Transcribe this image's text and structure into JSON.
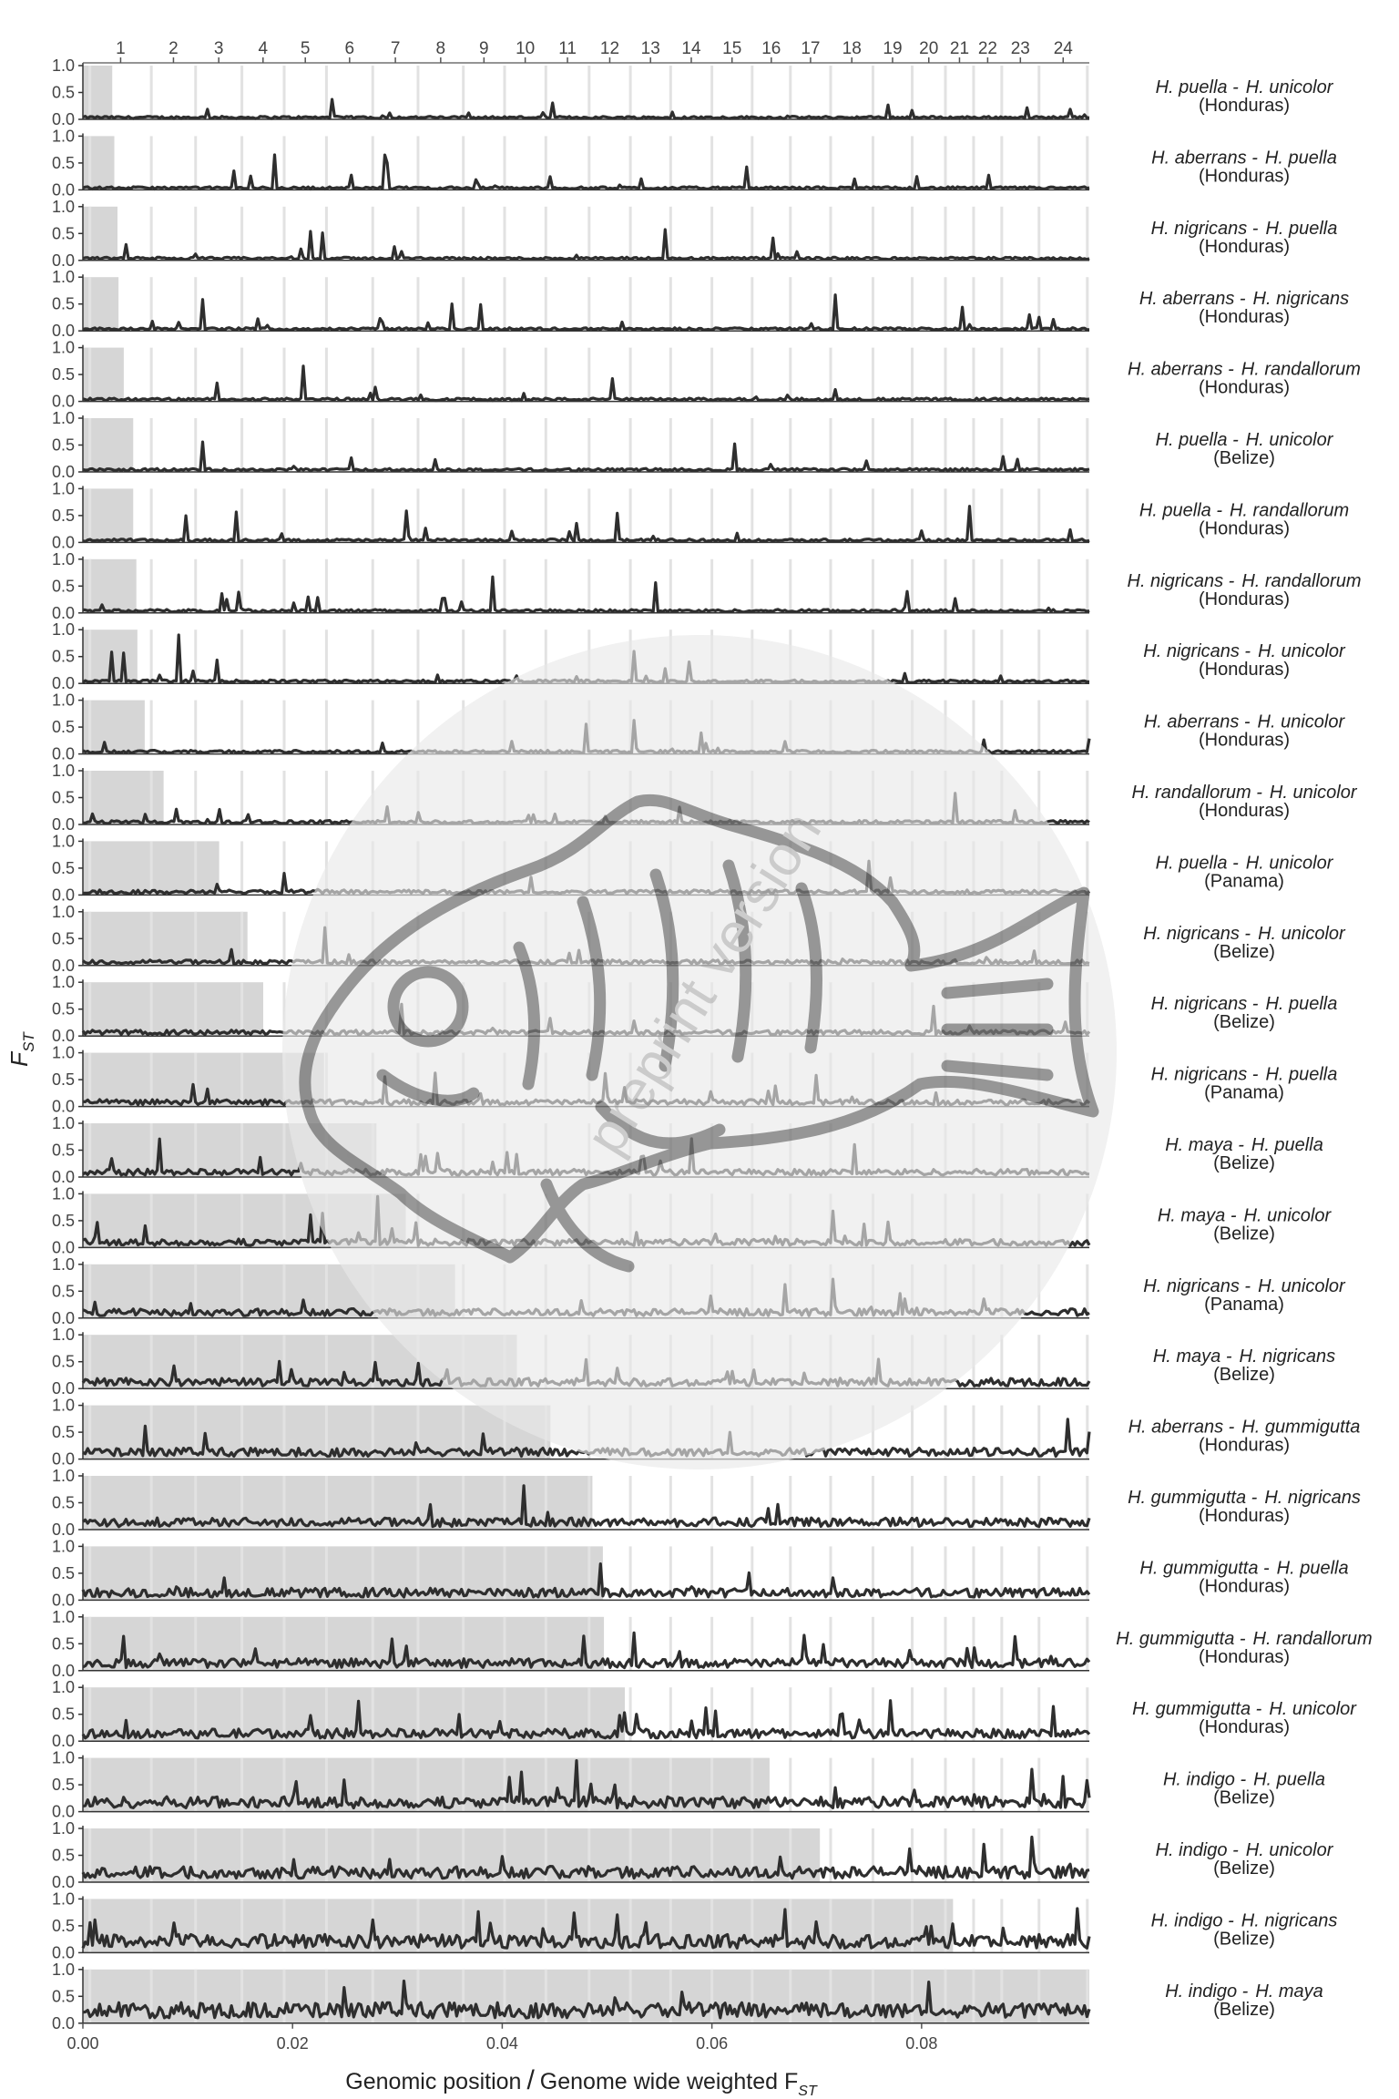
{
  "chart_data": {
    "type": "line",
    "ylabel": "F",
    "ylabel_sub": "ST",
    "xlabel": "Genomic position",
    "xlabel_sep": "/",
    "xlabel_rest": "Genome wide weighted F",
    "xlabel_sub": "ST",
    "xlim": [
      0,
      0.096
    ],
    "ylim": [
      0,
      1
    ],
    "x_ticks": [
      "0.00",
      "0.02",
      "0.04",
      "0.06",
      "0.08"
    ],
    "y_ticks": [
      "0.0",
      "0.5",
      "1.0"
    ],
    "chromosomes": [
      "1",
      "2",
      "3",
      "4",
      "5",
      "6",
      "7",
      "8",
      "9",
      "10",
      "11",
      "12",
      "13",
      "14",
      "15",
      "16",
      "17",
      "18",
      "19",
      "20",
      "21",
      "22",
      "23",
      "24"
    ],
    "watermark": "preprint version",
    "panels": [
      {
        "sp1": "H. puella -",
        "sp2": "H. unicolor",
        "loc": "(Honduras)",
        "weighted_fst": 0.0028
      },
      {
        "sp1": "H. aberrans -",
        "sp2": "H. puella",
        "loc": "(Honduras)",
        "weighted_fst": 0.003
      },
      {
        "sp1": "H. nigricans -",
        "sp2": "H. puella",
        "loc": "(Honduras)",
        "weighted_fst": 0.0033
      },
      {
        "sp1": "H. aberrans -",
        "sp2": "H. nigricans",
        "loc": "(Honduras)",
        "weighted_fst": 0.0034
      },
      {
        "sp1": "H. aberrans -",
        "sp2": "H. randallorum",
        "loc": "(Honduras)",
        "weighted_fst": 0.0039
      },
      {
        "sp1": "H. puella -",
        "sp2": "H. unicolor",
        "loc": "(Belize)",
        "weighted_fst": 0.0048
      },
      {
        "sp1": "H. puella -",
        "sp2": "H. randallorum",
        "loc": "(Honduras)",
        "weighted_fst": 0.0048
      },
      {
        "sp1": "H. nigricans -",
        "sp2": "H. randallorum",
        "loc": "(Honduras)",
        "weighted_fst": 0.0051
      },
      {
        "sp1": "H. nigricans -",
        "sp2": "H. unicolor",
        "loc": "(Honduras)",
        "weighted_fst": 0.0052
      },
      {
        "sp1": "H. aberrans -",
        "sp2": "H. unicolor",
        "loc": "(Honduras)",
        "weighted_fst": 0.0059
      },
      {
        "sp1": "H. randallorum -",
        "sp2": "H. unicolor",
        "loc": "(Honduras)",
        "weighted_fst": 0.0077
      },
      {
        "sp1": "H. puella -",
        "sp2": "H. unicolor",
        "loc": "(Panama)",
        "weighted_fst": 0.013
      },
      {
        "sp1": "H. nigricans -",
        "sp2": "H. unicolor",
        "loc": "(Belize)",
        "weighted_fst": 0.0157
      },
      {
        "sp1": "H. nigricans -",
        "sp2": "H. puella",
        "loc": "(Belize)",
        "weighted_fst": 0.0172
      },
      {
        "sp1": "H. nigricans -",
        "sp2": "H. puella",
        "loc": "(Panama)",
        "weighted_fst": 0.023
      },
      {
        "sp1": "H. maya -",
        "sp2": "H. puella",
        "loc": "(Belize)",
        "weighted_fst": 0.028
      },
      {
        "sp1": "H. maya -",
        "sp2": "H. unicolor",
        "loc": "(Belize)",
        "weighted_fst": 0.0308
      },
      {
        "sp1": "H. nigricans -",
        "sp2": "H. unicolor",
        "loc": "(Panama)",
        "weighted_fst": 0.0355
      },
      {
        "sp1": "H. maya -",
        "sp2": "H. nigricans",
        "loc": "(Belize)",
        "weighted_fst": 0.0414
      },
      {
        "sp1": "H. aberrans -",
        "sp2": "H. gummigutta",
        "loc": "(Honduras)",
        "weighted_fst": 0.0446
      },
      {
        "sp1": "H. gummigutta -",
        "sp2": "H. nigricans",
        "loc": "(Honduras)",
        "weighted_fst": 0.0486
      },
      {
        "sp1": "H. gummigutta -",
        "sp2": "H. puella",
        "loc": "(Honduras)",
        "weighted_fst": 0.0496
      },
      {
        "sp1": "H. gummigutta -",
        "sp2": "H. randallorum",
        "loc": "(Honduras)",
        "weighted_fst": 0.0497
      },
      {
        "sp1": "H. gummigutta -",
        "sp2": "H. unicolor",
        "loc": "(Honduras)",
        "weighted_fst": 0.0517
      },
      {
        "sp1": "H. indigo -",
        "sp2": "H. puella",
        "loc": "(Belize)",
        "weighted_fst": 0.0655
      },
      {
        "sp1": "H. indigo -",
        "sp2": "H. unicolor",
        "loc": "(Belize)",
        "weighted_fst": 0.0703
      },
      {
        "sp1": "H. indigo -",
        "sp2": "H. nigricans",
        "loc": "(Belize)",
        "weighted_fst": 0.083
      },
      {
        "sp1": "H. indigo -",
        "sp2": "H. maya",
        "loc": "(Belize)",
        "weighted_fst": 0.096
      }
    ],
    "colors": {
      "trace": "#2e2e2e",
      "bar": "#d6d6d6",
      "gridline": "#e2e2e2",
      "axis": "#333333",
      "tick_text": "#444444",
      "watermark_circle": "#e8e8e8",
      "fish_stroke": "#707070"
    }
  }
}
